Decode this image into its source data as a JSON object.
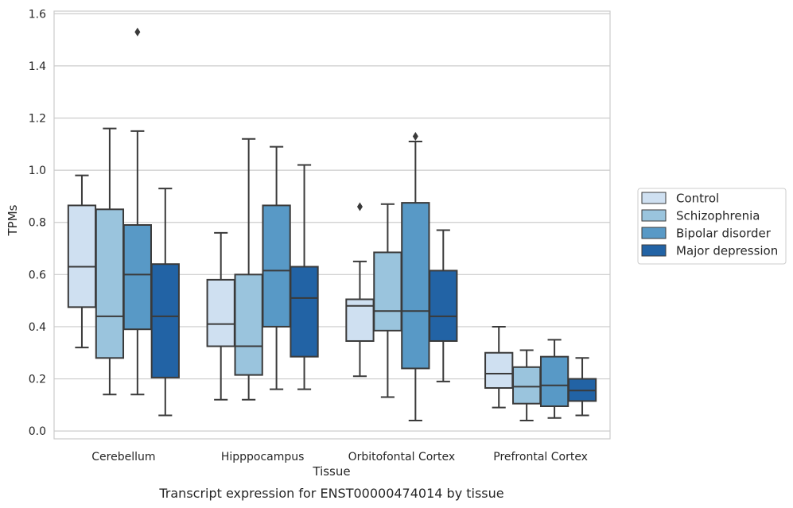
{
  "chart_data": {
    "type": "box",
    "title": "",
    "caption": "Transcript expression for ENST00000474014 by tissue",
    "xlabel": "Tissue",
    "ylabel": "TPMs",
    "ylim": [
      -0.03,
      1.61
    ],
    "yticks": [
      "0.0",
      "0.2",
      "0.4",
      "0.6",
      "0.8",
      "1.0",
      "1.2",
      "1.4",
      "1.6"
    ],
    "categories": [
      "Cerebellum",
      "Hipppocampus",
      "Orbitofontal Cortex",
      "Prefrontal Cortex"
    ],
    "grid": true,
    "legend_position": "right",
    "series": [
      {
        "name": "Control",
        "color": "#cfe0f1",
        "boxes": [
          {
            "min": 0.32,
            "q1": 0.475,
            "median": 0.63,
            "q3": 0.865,
            "max": 0.98,
            "outliers": []
          },
          {
            "min": 0.12,
            "q1": 0.325,
            "median": 0.41,
            "q3": 0.58,
            "max": 0.76,
            "outliers": []
          },
          {
            "min": 0.21,
            "q1": 0.345,
            "median": 0.48,
            "q3": 0.505,
            "max": 0.65,
            "outliers": [
              0.86
            ]
          },
          {
            "min": 0.09,
            "q1": 0.165,
            "median": 0.22,
            "q3": 0.3,
            "max": 0.4,
            "outliers": []
          }
        ]
      },
      {
        "name": "Schizophrenia",
        "color": "#9ac4dd",
        "boxes": [
          {
            "min": 0.14,
            "q1": 0.28,
            "median": 0.44,
            "q3": 0.85,
            "max": 1.16,
            "outliers": []
          },
          {
            "min": 0.12,
            "q1": 0.215,
            "median": 0.325,
            "q3": 0.6,
            "max": 1.12,
            "outliers": []
          },
          {
            "min": 0.13,
            "q1": 0.385,
            "median": 0.46,
            "q3": 0.685,
            "max": 0.87,
            "outliers": []
          },
          {
            "min": 0.04,
            "q1": 0.105,
            "median": 0.17,
            "q3": 0.245,
            "max": 0.31,
            "outliers": []
          }
        ]
      },
      {
        "name": "Bipolar disorder",
        "color": "#5899c6",
        "boxes": [
          {
            "min": 0.14,
            "q1": 0.39,
            "median": 0.6,
            "q3": 0.79,
            "max": 1.15,
            "outliers": [
              1.53
            ]
          },
          {
            "min": 0.16,
            "q1": 0.4,
            "median": 0.615,
            "q3": 0.865,
            "max": 1.09,
            "outliers": []
          },
          {
            "min": 0.04,
            "q1": 0.24,
            "median": 0.46,
            "q3": 0.875,
            "max": 1.11,
            "outliers": [
              1.13
            ]
          },
          {
            "min": 0.05,
            "q1": 0.095,
            "median": 0.175,
            "q3": 0.285,
            "max": 0.35,
            "outliers": []
          }
        ]
      },
      {
        "name": "Major depression",
        "color": "#2263a5",
        "boxes": [
          {
            "min": 0.06,
            "q1": 0.205,
            "median": 0.44,
            "q3": 0.64,
            "max": 0.93,
            "outliers": []
          },
          {
            "min": 0.16,
            "q1": 0.285,
            "median": 0.51,
            "q3": 0.63,
            "max": 1.02,
            "outliers": []
          },
          {
            "min": 0.19,
            "q1": 0.345,
            "median": 0.44,
            "q3": 0.615,
            "max": 0.77,
            "outliers": []
          },
          {
            "min": 0.06,
            "q1": 0.115,
            "median": 0.155,
            "q3": 0.2,
            "max": 0.28,
            "outliers": []
          }
        ]
      }
    ]
  }
}
